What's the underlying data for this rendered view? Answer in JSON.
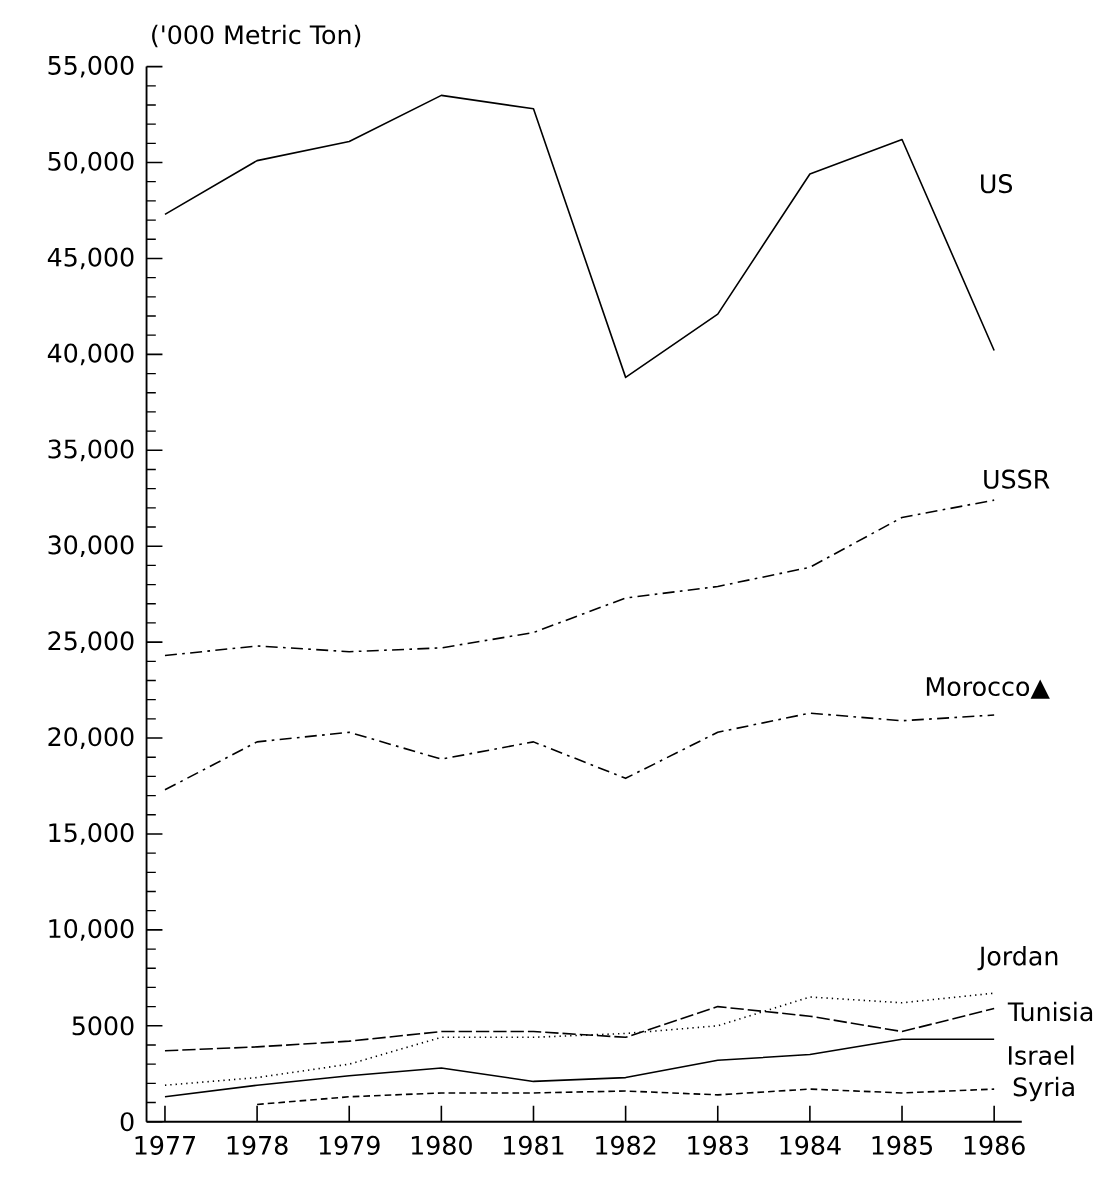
{
  "chart_data": {
    "type": "line",
    "ylabel": "('000 Metric Ton)",
    "x": [
      1977,
      1978,
      1979,
      1980,
      1981,
      1982,
      1983,
      1984,
      1985,
      1986
    ],
    "xlim": [
      1976.8,
      1986.3
    ],
    "xticks": [
      1977,
      1978,
      1979,
      1980,
      1981,
      1982,
      1983,
      1984,
      1985,
      1986
    ],
    "ylim": [
      0,
      55000
    ],
    "yticks": [
      0,
      5000,
      {
        "value": 10000,
        "label": "10,000"
      },
      {
        "value": 15000,
        "label": "15,000"
      },
      {
        "value": 20000,
        "label": "20,000"
      },
      {
        "value": 25000,
        "label": "25,000"
      },
      {
        "value": 30000,
        "label": "30,000"
      },
      {
        "value": 35000,
        "label": "35,000"
      },
      {
        "value": 40000,
        "label": "40,000"
      },
      {
        "value": 45000,
        "label": "45,000"
      },
      {
        "value": 50000,
        "label": "50,000"
      },
      {
        "value": 55000,
        "label": "55,000"
      }
    ],
    "series": [
      {
        "name": "US",
        "color": "#000000",
        "line_style": "solid",
        "values": [
          47300,
          50100,
          51100,
          53500,
          52800,
          38800,
          42100,
          49400,
          51200,
          40200
        ]
      },
      {
        "name": "USSR",
        "color": "#000000",
        "line_style": "dashdot",
        "values": [
          24300,
          24800,
          24500,
          24700,
          25500,
          27300,
          27900,
          28900,
          31500,
          32400
        ]
      },
      {
        "name": "Morocco▲",
        "color": "#000000",
        "line_style": "dashdot",
        "values": [
          17300,
          19800,
          20300,
          18900,
          19800,
          17900,
          20300,
          21300,
          20900,
          21200
        ]
      },
      {
        "name": "Jordan",
        "color": "#000000",
        "line_style": "dotted",
        "values": [
          1900,
          2300,
          3000,
          4400,
          4400,
          4600,
          5000,
          6500,
          6200,
          6700
        ]
      },
      {
        "name": "Tunisia",
        "color": "#000000",
        "line_style": "dashed",
        "values": [
          3700,
          3900,
          4200,
          4700,
          4700,
          4400,
          6000,
          5500,
          4700,
          5900
        ]
      },
      {
        "name": "Israel",
        "color": "#000000",
        "line_style": "solid",
        "values": [
          1300,
          1900,
          2400,
          2800,
          2100,
          2300,
          3200,
          3500,
          4300,
          4300
        ]
      },
      {
        "name": "Syria",
        "color": "#000000",
        "line_style": "short dashed",
        "values": [
          null,
          900,
          1300,
          1500,
          1500,
          1600,
          1400,
          1700,
          1500,
          1700
        ]
      }
    ]
  }
}
